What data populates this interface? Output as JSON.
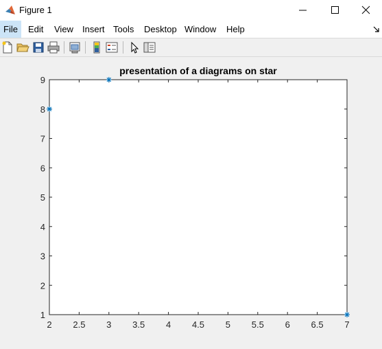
{
  "window": {
    "title": "Figure 1",
    "icon": "matlab-logo-icon",
    "controls": [
      "minimize-icon",
      "maximize-icon",
      "close-icon"
    ]
  },
  "menu": {
    "items": [
      {
        "label": "File"
      },
      {
        "label": "Edit"
      },
      {
        "label": "View"
      },
      {
        "label": "Insert"
      },
      {
        "label": "Tools"
      },
      {
        "label": "Desktop"
      },
      {
        "label": "Window"
      },
      {
        "label": "Help"
      }
    ]
  },
  "toolbar": {
    "tools": [
      "new-figure-icon",
      "open-file-icon",
      "save-icon",
      "print-icon",
      "print-preview-icon",
      "colorbar-icon",
      "legend-icon",
      "edit-plot-arrow-icon",
      "property-inspector-icon"
    ]
  },
  "colors": {
    "marker": "#0072bd",
    "axes_background": "#ffffff",
    "figure_background": "#f0f0f0"
  },
  "chart_data": {
    "type": "scatter",
    "title": "presentation of a diagrams on star",
    "marker": "asterisk",
    "x": [
      2,
      3,
      7
    ],
    "y": [
      8,
      9,
      1
    ],
    "xlim": [
      2,
      7
    ],
    "ylim": [
      1,
      9
    ],
    "xticks": [
      "2",
      "2.5",
      "3",
      "3.5",
      "4",
      "4.5",
      "5",
      "5.5",
      "6",
      "6.5",
      "7"
    ],
    "yticks": [
      "1",
      "2",
      "3",
      "4",
      "5",
      "6",
      "7",
      "8",
      "9"
    ],
    "grid": false
  }
}
